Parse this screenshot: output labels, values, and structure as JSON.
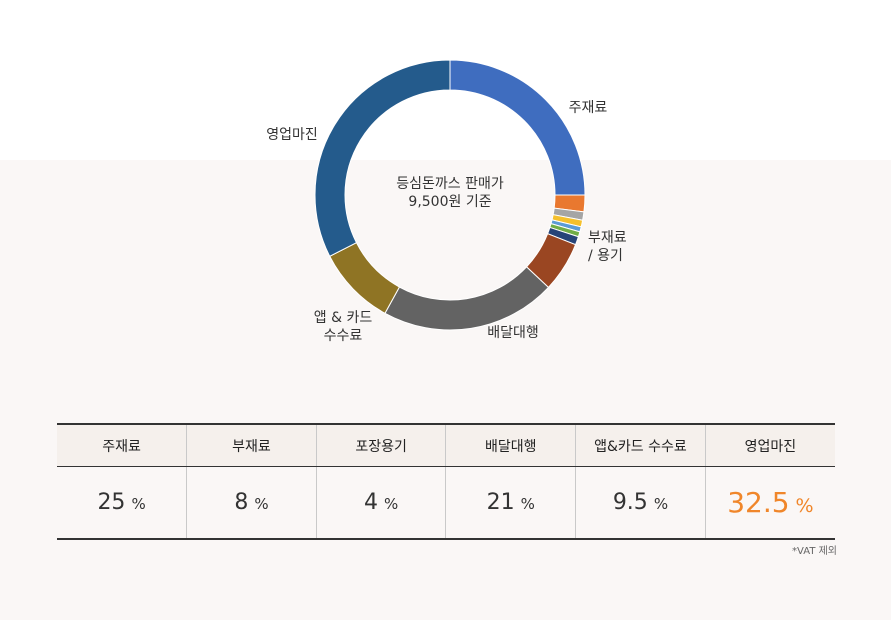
{
  "chart_data": {
    "type": "donut",
    "center_label": "등심돈까스 판매가\n9,500원 기준",
    "categories": [
      "주재료",
      null,
      null,
      null,
      null,
      null,
      null,
      "부재료\n/ 용기",
      "배달대행",
      "앱 & 카드\n수수료",
      "영업마진"
    ],
    "values": [
      25,
      2,
      1,
      0.8,
      0.6,
      0.6,
      1,
      6,
      21,
      9.5,
      32.5
    ],
    "colors": [
      "#3f6dbf",
      "#e9782f",
      "#a5a5a5",
      "#f5c02c",
      "#5b9bd5",
      "#70ad47",
      "#264478",
      "#9a4622",
      "#636363",
      "#8f7424",
      "#245b8c"
    ]
  },
  "table": {
    "header": [
      "주재료",
      "부재료",
      "포장용기",
      "배달대행",
      "앱&카드 수수료",
      "영업마진"
    ],
    "values": [
      25,
      8,
      4,
      21,
      9.5,
      32.5
    ],
    "unit": "%",
    "note": "*VAT 제외"
  }
}
